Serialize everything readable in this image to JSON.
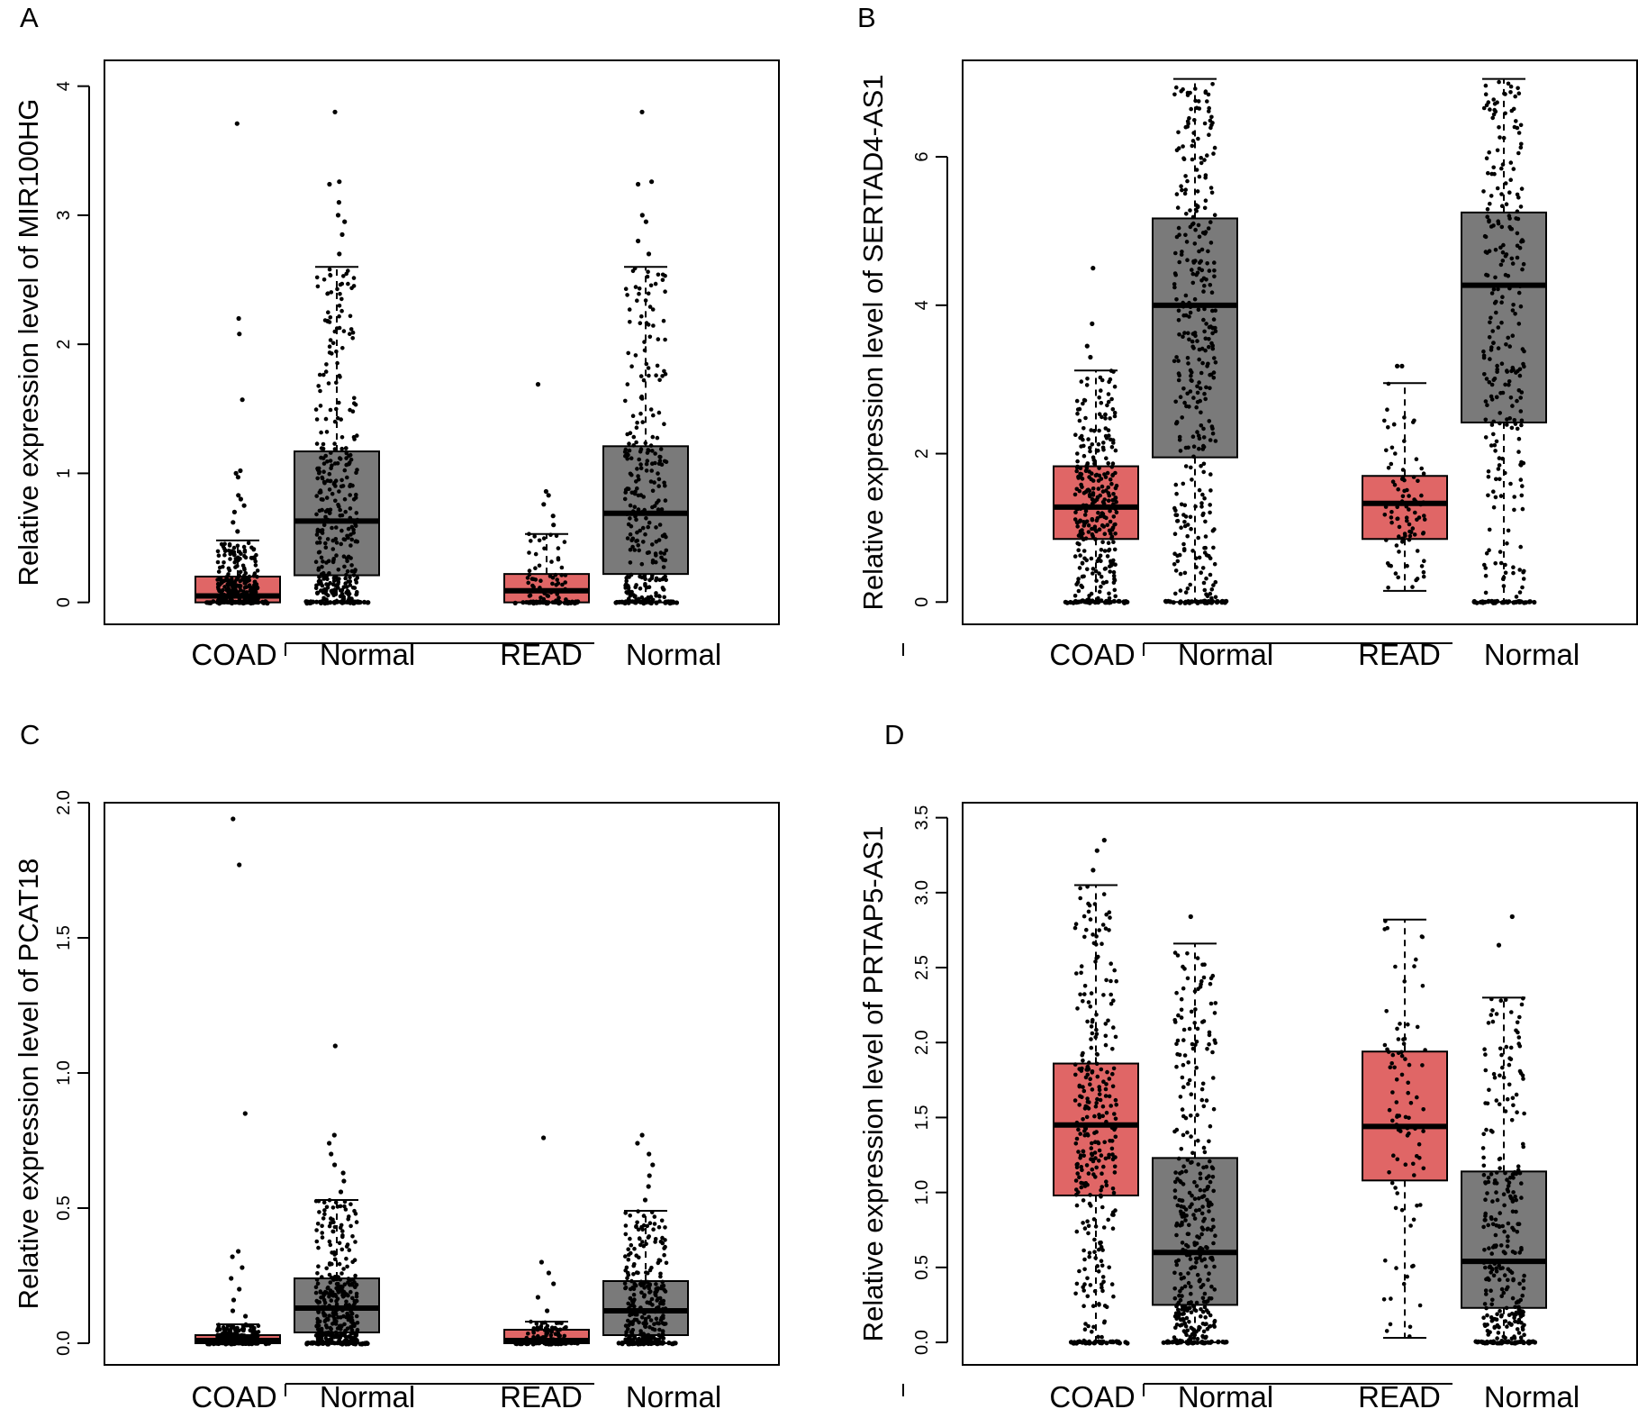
{
  "figure": {
    "colors": {
      "tumor": "#e06666",
      "normal": "#7a7a7a",
      "point": "#000000",
      "axis": "#000000"
    }
  },
  "chart_data": [
    {
      "panel_label": "A",
      "type": "box",
      "ylabel": "Relative expression level of MIR100HG",
      "ylim": [
        -0.17,
        4.2
      ],
      "yticks": [
        0,
        1,
        2,
        3,
        4
      ],
      "categories": [
        "COAD",
        "Normal",
        "READ",
        "Normal"
      ],
      "boxes": [
        {
          "group": "COAD",
          "kind": "tumor",
          "min": 0,
          "q1": 0.0,
          "median": 0.05,
          "q3": 0.2,
          "max": 0.48,
          "outliers": [
            0.55,
            0.62,
            0.7,
            0.75,
            0.8,
            0.83,
            0.97,
            1.0,
            1.02,
            1.57,
            2.08,
            2.2,
            3.71
          ]
        },
        {
          "group": "Normal",
          "kind": "normal",
          "min": 0,
          "q1": 0.21,
          "median": 0.63,
          "q3": 1.17,
          "max": 2.6,
          "outliers": [
            2.7,
            2.85,
            2.95,
            3.0,
            3.1,
            3.24,
            3.26,
            3.8
          ]
        },
        {
          "group": "READ",
          "kind": "tumor",
          "min": 0,
          "q1": 0.0,
          "median": 0.09,
          "q3": 0.22,
          "max": 0.53,
          "outliers": [
            0.6,
            0.67,
            0.76,
            0.83,
            0.86,
            1.69
          ]
        },
        {
          "group": "Normal",
          "kind": "normal",
          "min": 0,
          "q1": 0.22,
          "median": 0.69,
          "q3": 1.21,
          "max": 2.6,
          "outliers": [
            2.7,
            2.8,
            2.95,
            3.0,
            3.24,
            3.26,
            3.8
          ]
        }
      ]
    },
    {
      "panel_label": "B",
      "type": "box",
      "ylabel": "Relative expression level of SERTAD4-AS1",
      "ylim": [
        -0.3,
        7.3
      ],
      "yticks": [
        0,
        2,
        4,
        6
      ],
      "categories": [
        "COAD",
        "Normal",
        "READ",
        "Normal"
      ],
      "boxes": [
        {
          "group": "COAD",
          "kind": "tumor",
          "min": 0,
          "q1": 0.85,
          "median": 1.28,
          "q3": 1.83,
          "max": 3.12,
          "outliers": [
            3.3,
            3.45,
            3.75,
            4.5
          ]
        },
        {
          "group": "Normal",
          "kind": "normal",
          "min": 0,
          "q1": 1.95,
          "median": 4.0,
          "q3": 5.17,
          "max": 7.05,
          "outliers": []
        },
        {
          "group": "READ",
          "kind": "tumor",
          "min": 0.15,
          "q1": 0.85,
          "median": 1.33,
          "q3": 1.7,
          "max": 2.95,
          "outliers": [
            3.18,
            3.18
          ]
        },
        {
          "group": "Normal",
          "kind": "normal",
          "min": 0,
          "q1": 2.42,
          "median": 4.27,
          "q3": 5.25,
          "max": 7.05,
          "outliers": []
        }
      ]
    },
    {
      "panel_label": "C",
      "type": "box",
      "ylabel": "Relative expression level of PCAT18",
      "ylim": [
        -0.08,
        2.0
      ],
      "yticks": [
        0.0,
        0.5,
        1.0,
        1.5,
        2.0
      ],
      "categories": [
        "COAD",
        "Normal",
        "READ",
        "Normal"
      ],
      "boxes": [
        {
          "group": "COAD",
          "kind": "tumor",
          "min": 0,
          "q1": 0.0,
          "median": 0.01,
          "q3": 0.03,
          "max": 0.07,
          "outliers": [
            0.1,
            0.12,
            0.16,
            0.2,
            0.24,
            0.28,
            0.32,
            0.34,
            0.85,
            1.77,
            1.94
          ]
        },
        {
          "group": "Normal",
          "kind": "normal",
          "min": 0,
          "q1": 0.04,
          "median": 0.13,
          "q3": 0.24,
          "max": 0.53,
          "outliers": [
            0.56,
            0.6,
            0.63,
            0.66,
            0.7,
            0.74,
            0.77,
            1.1
          ]
        },
        {
          "group": "READ",
          "kind": "tumor",
          "min": 0,
          "q1": 0.0,
          "median": 0.01,
          "q3": 0.05,
          "max": 0.08,
          "outliers": [
            0.12,
            0.17,
            0.22,
            0.26,
            0.3,
            0.76
          ]
        },
        {
          "group": "Normal",
          "kind": "normal",
          "min": 0,
          "q1": 0.03,
          "median": 0.12,
          "q3": 0.23,
          "max": 0.49,
          "outliers": [
            0.53,
            0.58,
            0.62,
            0.66,
            0.7,
            0.74,
            0.77
          ]
        }
      ]
    },
    {
      "panel_label": "D",
      "type": "box",
      "ylabel": "Relative expression level of PRTAP5-AS1",
      "ylim": [
        -0.15,
        3.6
      ],
      "yticks": [
        0.0,
        0.5,
        1.0,
        1.5,
        2.0,
        2.5,
        3.0,
        3.5
      ],
      "categories": [
        "COAD",
        "Normal",
        "READ",
        "Normal"
      ],
      "boxes": [
        {
          "group": "COAD",
          "kind": "tumor",
          "min": 0,
          "q1": 0.98,
          "median": 1.45,
          "q3": 1.86,
          "max": 3.05,
          "outliers": [
            3.15,
            3.28,
            3.35
          ]
        },
        {
          "group": "Normal",
          "kind": "normal",
          "min": 0,
          "q1": 0.25,
          "median": 0.6,
          "q3": 1.23,
          "max": 2.66,
          "outliers": [
            2.84
          ]
        },
        {
          "group": "READ",
          "kind": "tumor",
          "min": 0.03,
          "q1": 1.08,
          "median": 1.44,
          "q3": 1.94,
          "max": 2.82,
          "outliers": []
        },
        {
          "group": "Normal",
          "kind": "normal",
          "min": 0,
          "q1": 0.23,
          "median": 0.54,
          "q3": 1.14,
          "max": 2.3,
          "outliers": [
            2.65,
            2.84
          ]
        }
      ]
    }
  ]
}
